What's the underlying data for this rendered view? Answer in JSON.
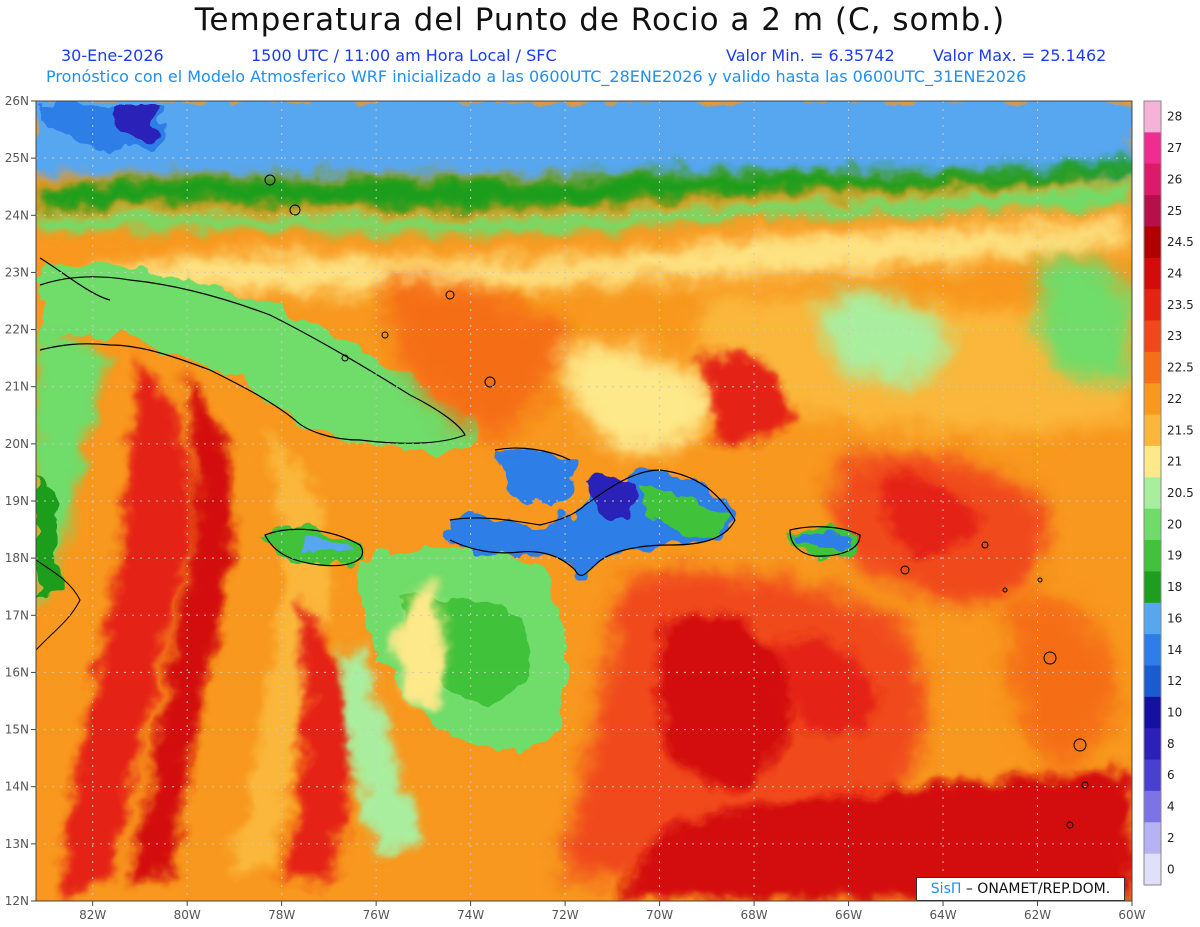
{
  "header": {
    "title": "Temperatura del Punto de Rocio a 2 m (C, somb.)",
    "date": "30-Ene-2026",
    "time_info": "1500 UTC / 11:00 am Hora Local / SFC",
    "min_value": "Valor Min. = 6.35742",
    "max_value": "Valor Max. = 25.1462",
    "model_info": "Pronóstico con el Modelo Atmosferico WRF inicializado a las 0600UTC_28ENE2026 y valido hasta las  0600UTC_31ENE2026"
  },
  "map": {
    "lat_labels": [
      "26N",
      "25N",
      "24N",
      "23N",
      "22N",
      "21N",
      "20N",
      "19N",
      "18N",
      "17N",
      "16N",
      "15N",
      "14N",
      "13N",
      "12N"
    ],
    "lon_labels": [
      "82W",
      "80W",
      "78W",
      "76W",
      "74W",
      "72W",
      "70W",
      "68W",
      "66W",
      "64W",
      "62W",
      "60W"
    ],
    "lat_range": [
      12,
      26
    ],
    "lon_range": [
      -83.2,
      -60
    ]
  },
  "legend": {
    "levels": [
      "28",
      "27",
      "26",
      "25",
      "24.5",
      "24",
      "23.5",
      "23",
      "22.5",
      "22",
      "21.5",
      "21",
      "20.5",
      "20",
      "19",
      "18",
      "16",
      "14",
      "12",
      "10",
      "8",
      "6",
      "4",
      "2",
      "0"
    ],
    "colors": [
      "#f7b3d6",
      "#ef2c8f",
      "#dc1a6a",
      "#b5104a",
      "#b10000",
      "#d30b0b",
      "#e42412",
      "#f0481a",
      "#f56e18",
      "#f8981e",
      "#fab73b",
      "#fde88a",
      "#a9ee9e",
      "#6fdc69",
      "#41c23a",
      "#1e9e1e",
      "#56a6f0",
      "#2d7ee8",
      "#1a5cd0",
      "#1610a0",
      "#2c20b8",
      "#4a40d0",
      "#7d72e6",
      "#b6b2f4",
      "#e0e0fa"
    ]
  },
  "credit": {
    "brand": "SisΠ",
    "text": " – ONAMET/REP.DOM."
  }
}
